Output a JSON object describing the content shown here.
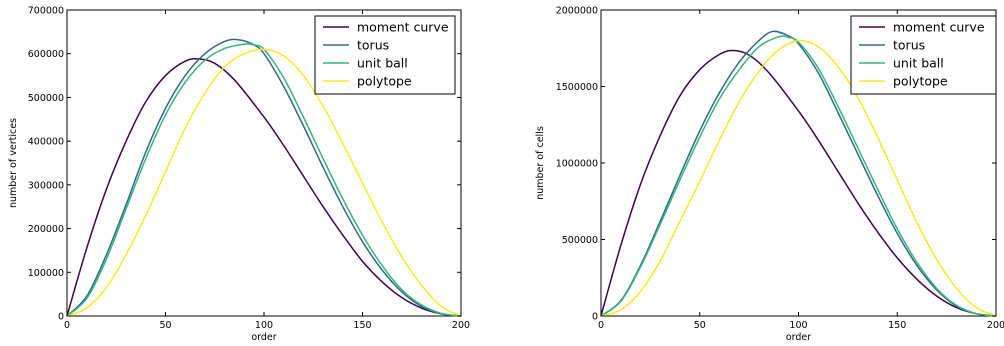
{
  "chart_data": [
    {
      "type": "line",
      "title": "",
      "xlabel": "order",
      "ylabel": "number of vertices",
      "xlim": [
        0,
        200
      ],
      "ylim": [
        0,
        700000
      ],
      "xticks": [
        0,
        50,
        100,
        150,
        200
      ],
      "yticks": [
        0,
        100000,
        200000,
        300000,
        400000,
        500000,
        600000,
        700000
      ],
      "grid": false,
      "legend": "top-right",
      "series": [
        {
          "name": "moment curve",
          "color": "#440154",
          "x": [
            0,
            10,
            20,
            30,
            40,
            50,
            60,
            67,
            75,
            85,
            100,
            110,
            120,
            130,
            140,
            150,
            160,
            170,
            180,
            190,
            200
          ],
          "values": [
            0,
            155000,
            290000,
            400000,
            490000,
            550000,
            583000,
            588000,
            578000,
            540000,
            455000,
            390000,
            320000,
            250000,
            185000,
            125000,
            78000,
            42000,
            18000,
            5000,
            0
          ]
        },
        {
          "name": "torus",
          "color": "#31688e",
          "x": [
            0,
            10,
            20,
            30,
            40,
            50,
            60,
            70,
            80,
            87,
            95,
            100,
            110,
            120,
            130,
            140,
            150,
            160,
            170,
            180,
            190,
            200
          ],
          "values": [
            0,
            45000,
            140000,
            255000,
            375000,
            475000,
            550000,
            600000,
            628000,
            632000,
            620000,
            600000,
            525000,
            435000,
            340000,
            250000,
            170000,
            105000,
            55000,
            22000,
            5000,
            0
          ]
        },
        {
          "name": "unit ball",
          "color": "#35b779",
          "x": [
            0,
            10,
            20,
            30,
            40,
            50,
            60,
            70,
            80,
            90,
            95,
            100,
            110,
            120,
            130,
            140,
            150,
            160,
            170,
            180,
            190,
            200
          ],
          "values": [
            0,
            40000,
            130000,
            245000,
            360000,
            460000,
            535000,
            585000,
            612000,
            622000,
            620000,
            610000,
            545000,
            455000,
            360000,
            268000,
            185000,
            115000,
            60000,
            25000,
            6000,
            0
          ]
        },
        {
          "name": "polytope",
          "color": "#fde725",
          "x": [
            0,
            10,
            20,
            30,
            40,
            50,
            60,
            70,
            80,
            90,
            100,
            110,
            120,
            130,
            140,
            150,
            160,
            170,
            180,
            190,
            200
          ],
          "values": [
            0,
            18000,
            65000,
            140000,
            230000,
            330000,
            430000,
            510000,
            570000,
            600000,
            610000,
            595000,
            550000,
            480000,
            395000,
            305000,
            215000,
            135000,
            70000,
            22000,
            0
          ]
        }
      ]
    },
    {
      "type": "line",
      "title": "",
      "xlabel": "order",
      "ylabel": "number of cells",
      "xlim": [
        0,
        200
      ],
      "ylim": [
        0,
        2000000
      ],
      "xticks": [
        0,
        50,
        100,
        150,
        200
      ],
      "yticks": [
        0,
        500000,
        1000000,
        1500000,
        2000000
      ],
      "grid": false,
      "legend": "top-right",
      "series": [
        {
          "name": "moment curve",
          "color": "#440154",
          "x": [
            0,
            10,
            20,
            30,
            40,
            50,
            60,
            67,
            75,
            85,
            100,
            110,
            120,
            130,
            140,
            150,
            160,
            170,
            180,
            190,
            200
          ],
          "values": [
            0,
            460000,
            860000,
            1180000,
            1440000,
            1610000,
            1710000,
            1735000,
            1705000,
            1590000,
            1340000,
            1150000,
            945000,
            740000,
            550000,
            380000,
            240000,
            130000,
            55000,
            15000,
            0
          ]
        },
        {
          "name": "torus",
          "color": "#31688e",
          "x": [
            0,
            10,
            20,
            30,
            40,
            50,
            60,
            70,
            80,
            87,
            95,
            100,
            110,
            120,
            130,
            140,
            150,
            160,
            170,
            180,
            190,
            200
          ],
          "values": [
            0,
            100000,
            330000,
            620000,
            920000,
            1210000,
            1460000,
            1660000,
            1800000,
            1860000,
            1830000,
            1780000,
            1590000,
            1330000,
            1060000,
            790000,
            540000,
            330000,
            170000,
            65000,
            15000,
            0
          ]
        },
        {
          "name": "unit ball",
          "color": "#35b779",
          "x": [
            0,
            10,
            20,
            30,
            40,
            50,
            60,
            70,
            80,
            90,
            95,
            100,
            110,
            120,
            130,
            140,
            150,
            160,
            170,
            180,
            190,
            200
          ],
          "values": [
            0,
            95000,
            320000,
            600000,
            890000,
            1170000,
            1420000,
            1610000,
            1760000,
            1825000,
            1820000,
            1790000,
            1620000,
            1370000,
            1100000,
            830000,
            570000,
            350000,
            180000,
            70000,
            15000,
            0
          ]
        },
        {
          "name": "polytope",
          "color": "#fde725",
          "x": [
            0,
            10,
            20,
            30,
            40,
            50,
            60,
            70,
            80,
            90,
            100,
            110,
            120,
            130,
            140,
            150,
            160,
            170,
            180,
            190,
            200
          ],
          "values": [
            0,
            40000,
            160000,
            360000,
            620000,
            880000,
            1150000,
            1400000,
            1600000,
            1740000,
            1800000,
            1760000,
            1630000,
            1430000,
            1170000,
            890000,
            610000,
            370000,
            180000,
            55000,
            0
          ]
        }
      ]
    }
  ]
}
